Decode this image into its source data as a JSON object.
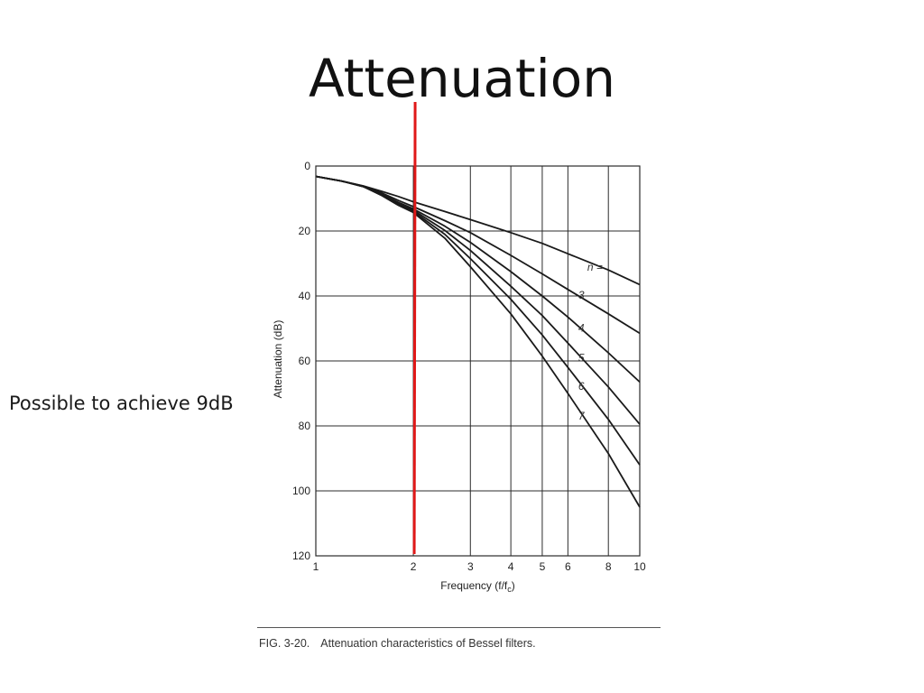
{
  "slide": {
    "title": "Attenuation",
    "annotation": "Possible to achieve 9dB"
  },
  "caption": {
    "fig_number": "FIG. 3-20.",
    "text": "Attenuation characteristics of Bessel filters."
  },
  "colors": {
    "curve": "#1a1a1a",
    "grid": "#2b2b2b",
    "marker": "#e01818"
  },
  "chart_data": {
    "type": "line",
    "title": "",
    "xlabel": "Frequency (f/f",
    "xlabel_sub": "c",
    "xlabel_close": ")",
    "ylabel": "Attenuation (dB)",
    "x_scale": "log",
    "xlim": [
      1,
      10
    ],
    "ylim": [
      0,
      120
    ],
    "y_inverted": true,
    "grid": true,
    "x_ticks": [
      1,
      2,
      3,
      4,
      5,
      6,
      8,
      10
    ],
    "y_ticks": [
      0,
      20,
      40,
      60,
      80,
      100,
      120
    ],
    "legend_header": "n =",
    "series": [
      {
        "name": "2",
        "x": [
          1,
          1.2,
          1.4,
          1.6,
          1.8,
          2,
          2.5,
          3,
          4,
          5,
          6,
          8,
          10
        ],
        "y": [
          3.2,
          4.6,
          6.1,
          7.8,
          9.4,
          11,
          14,
          16.5,
          20.5,
          23.8,
          27,
          32,
          36.5
        ]
      },
      {
        "name": "3",
        "x": [
          1,
          1.2,
          1.4,
          1.6,
          1.8,
          2,
          2.5,
          3,
          4,
          5,
          6,
          8,
          10
        ],
        "y": [
          3.2,
          4.6,
          6.2,
          8.3,
          10.6,
          12.5,
          16.8,
          20.5,
          27.5,
          33.2,
          38,
          45.5,
          51.5
        ]
      },
      {
        "name": "4",
        "x": [
          1,
          1.2,
          1.4,
          1.6,
          1.8,
          2,
          2.5,
          3,
          4,
          5,
          6,
          8,
          10
        ],
        "y": [
          3.2,
          4.6,
          6.3,
          8.7,
          11.2,
          13.2,
          18.5,
          23.5,
          32.5,
          40,
          46.5,
          57.5,
          66.5
        ]
      },
      {
        "name": "5",
        "x": [
          1,
          1.2,
          1.4,
          1.6,
          1.8,
          2,
          2.5,
          3,
          4,
          5,
          6,
          8,
          10
        ],
        "y": [
          3.2,
          4.6,
          6.3,
          8.9,
          11.6,
          13.6,
          19.8,
          26,
          37,
          46,
          54.5,
          68,
          79.5
        ]
      },
      {
        "name": "6",
        "x": [
          1,
          1.2,
          1.4,
          1.6,
          1.8,
          2,
          2.5,
          3,
          4,
          5,
          6,
          8,
          10
        ],
        "y": [
          3.2,
          4.6,
          6.3,
          9,
          11.9,
          14,
          21,
          28.5,
          41,
          52,
          62,
          78,
          92
        ]
      },
      {
        "name": "7",
        "x": [
          1,
          1.2,
          1.4,
          1.6,
          1.8,
          2,
          2.5,
          3,
          4,
          5,
          6,
          8,
          10
        ],
        "y": [
          3.2,
          4.6,
          6.3,
          9.1,
          12.1,
          14.3,
          22.2,
          31,
          45.5,
          58.5,
          70,
          88.5,
          105
        ]
      }
    ],
    "marker_line": {
      "x": 2
    }
  }
}
